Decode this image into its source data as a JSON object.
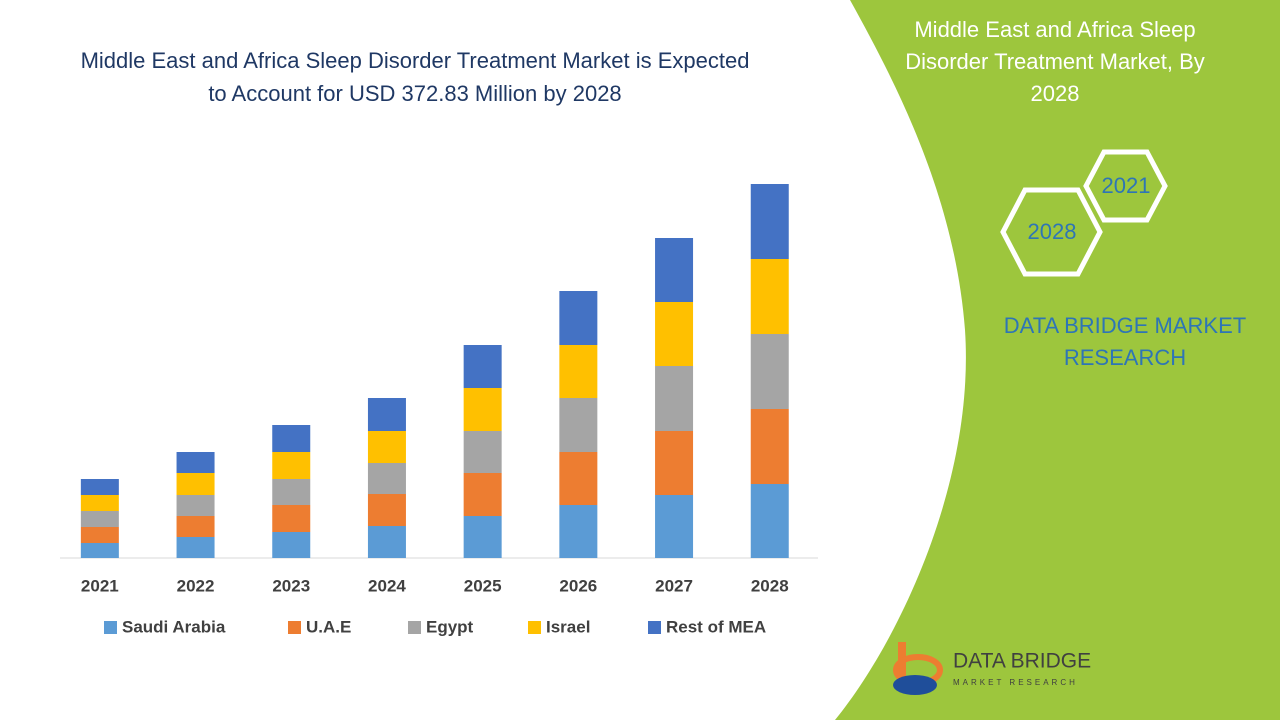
{
  "chart_data": {
    "type": "bar",
    "stacked": true,
    "title": "Middle East and Africa Sleep Disorder Treatment Market is Expected to Account for USD 372.83 Million by 2028",
    "categories": [
      "2021",
      "2022",
      "2023",
      "2024",
      "2025",
      "2026",
      "2027",
      "2028"
    ],
    "series": [
      {
        "name": "Saudi Arabia",
        "color": "#5b9bd5",
        "values": [
          15,
          21,
          26,
          32,
          42,
          53,
          63,
          74
        ]
      },
      {
        "name": "U.A.E",
        "color": "#ed7d31",
        "values": [
          16,
          21,
          27,
          32,
          43,
          53,
          64,
          75
        ]
      },
      {
        "name": "Egypt",
        "color": "#a5a5a5",
        "values": [
          16,
          21,
          26,
          31,
          42,
          54,
          65,
          75
        ]
      },
      {
        "name": "Israel",
        "color": "#ffc000",
        "values": [
          16,
          22,
          27,
          32,
          43,
          53,
          64,
          75
        ]
      },
      {
        "name": "Rest of MEA",
        "color": "#4472c4",
        "values": [
          16,
          21,
          27,
          33,
          43,
          54,
          64,
          75
        ]
      }
    ]
  },
  "panel": {
    "title": "Middle East and Africa Sleep Disorder Treatment Market, By 2028",
    "hex_back": "2021",
    "hex_front": "2028",
    "brand": "DATA BRIDGE MARKET RESEARCH"
  },
  "logo": {
    "name": "DATA BRIDGE",
    "tagline": "MARKET RESEARCH"
  }
}
